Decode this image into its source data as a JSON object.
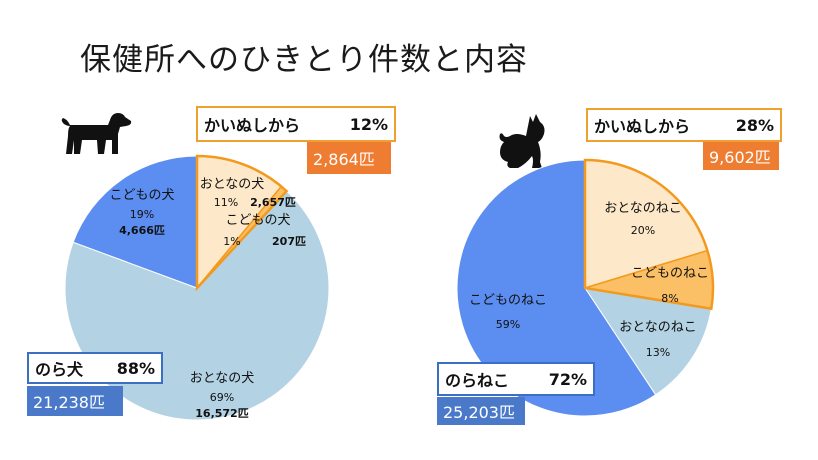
{
  "title": "保健所へのひきとり件数と内容",
  "colors": {
    "adult_owned": "#fde9c9",
    "child_owned": "#fbbf66",
    "stray_child": "#5b8ef0",
    "stray_adult": "#b3d2e4",
    "owned_outline": "#f39a1e",
    "owned_total_fill": "#ee7d31",
    "stray_total_fill": "#4a79c9"
  },
  "icons": {
    "dog": "dog-silhouette-icon",
    "cat": "cat-silhouette-icon"
  },
  "dog": {
    "owned_box": {
      "label": "かいぬしから",
      "pct": "12%",
      "count": "2,864匹"
    },
    "stray_box": {
      "label": "のら犬",
      "pct": "88%",
      "count": "21,238匹"
    }
  },
  "cat": {
    "owned_box": {
      "label": "かいぬしから",
      "pct": "28%",
      "count": "9,602匹"
    },
    "stray_box": {
      "label": "のらねこ",
      "pct": "72%",
      "count": "25,203匹"
    }
  },
  "chart_data": [
    {
      "type": "pie",
      "title": "犬",
      "slices": [
        {
          "key": "adult_owned",
          "label": "おとなの犬",
          "pct_text": "11%",
          "count_text": "2,657匹",
          "value": 2657,
          "group": "owned"
        },
        {
          "key": "child_owned",
          "label": "こどもの犬",
          "pct_text": "1%",
          "count_text": "207匹",
          "value": 207,
          "group": "owned"
        },
        {
          "key": "stray_adult",
          "label": "おとなの犬",
          "pct_text": "69%",
          "count_text": "16,572匹",
          "value": 16572,
          "group": "stray"
        },
        {
          "key": "stray_child",
          "label": "こどもの犬",
          "pct_text": "19%",
          "count_text": "4,666匹",
          "value": 4666,
          "group": "stray"
        }
      ]
    },
    {
      "type": "pie",
      "title": "ねこ",
      "slices": [
        {
          "key": "adult_owned",
          "label": "おとなのねこ",
          "pct_text": "20%",
          "value": 7058,
          "group": "owned"
        },
        {
          "key": "child_owned",
          "label": "こどものねこ",
          "pct_text": "8%",
          "value": 2544,
          "group": "owned"
        },
        {
          "key": "stray_adult",
          "label": "おとなのねこ",
          "pct_text": "13%",
          "value": 4564,
          "group": "stray"
        },
        {
          "key": "stray_child",
          "label": "こどものねこ",
          "pct_text": "59%",
          "value": 20639,
          "group": "stray"
        }
      ]
    }
  ]
}
